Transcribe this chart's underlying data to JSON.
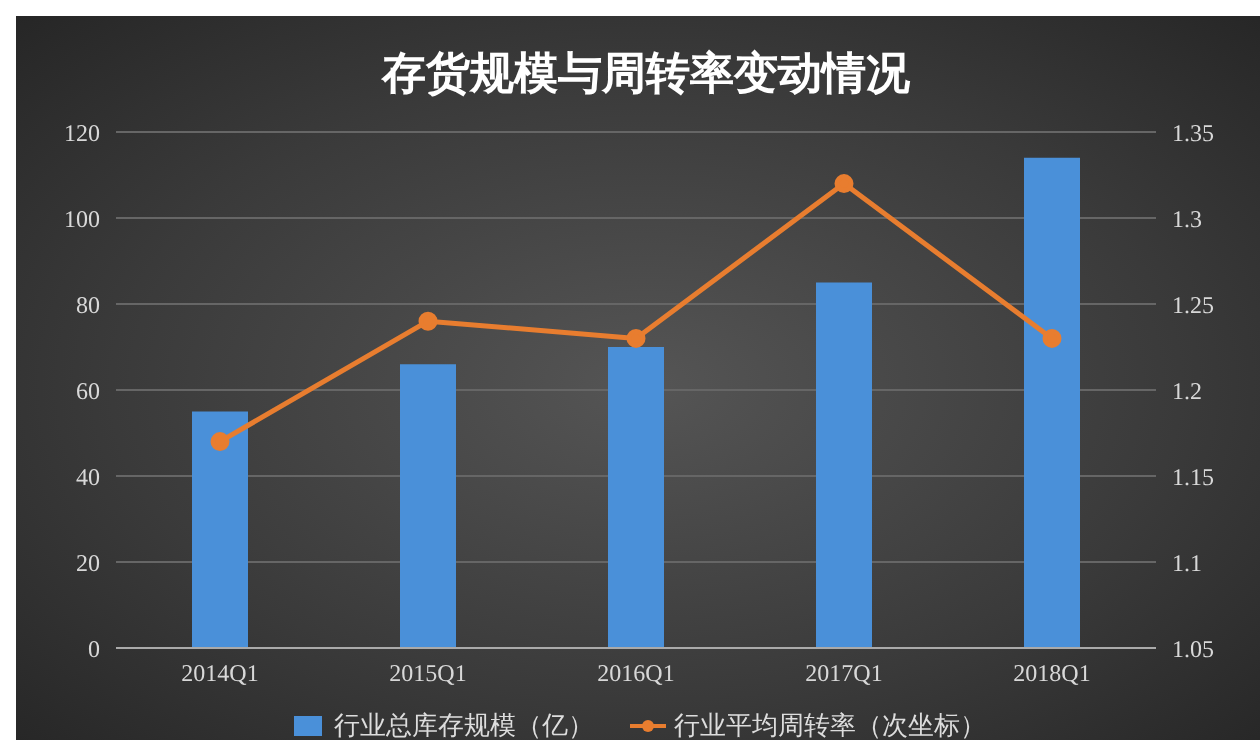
{
  "chart_data": {
    "type": "bar",
    "title": "存货规模与周转率变动情况",
    "categories": [
      "2014Q1",
      "2015Q1",
      "2016Q1",
      "2017Q1",
      "2018Q1"
    ],
    "series": [
      {
        "name": "行业总库存规模（亿）",
        "color": "#4a90d9",
        "values": [
          55,
          66,
          70,
          85,
          114
        ]
      },
      {
        "name": "行业平均周转率（次坐标）",
        "type": "line",
        "axis": "y2",
        "color": "#e87d2f",
        "values": [
          1.17,
          1.24,
          1.23,
          1.32,
          1.23
        ],
        "marker": "circle"
      }
    ],
    "ylim": [
      0,
      120
    ],
    "yticks": [
      0,
      20,
      40,
      60,
      80,
      100,
      120
    ],
    "y2lim": [
      1.05,
      1.35
    ],
    "y2ticks": [
      1.05,
      1.1,
      1.15,
      1.2,
      1.25,
      1.3,
      1.35
    ],
    "grid": "y",
    "legend": "bottom"
  }
}
